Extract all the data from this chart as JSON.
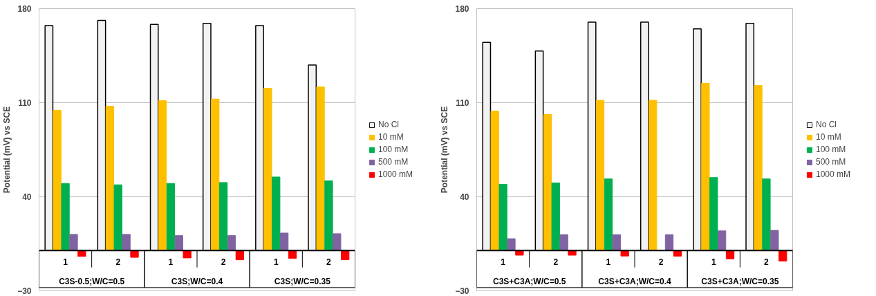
{
  "chart_data": [
    {
      "type": "bar",
      "ylabel": "Potential (mV) vs SCE",
      "categories": [
        "1",
        "2",
        "1",
        "2",
        "1",
        "2"
      ],
      "annotations": [
        "C3S-0.5;W/C=0.5",
        "C3S;W/C=0.4",
        "C3S;W/C=0.35"
      ],
      "ylim": [
        -30,
        180
      ],
      "yticks": [
        -30,
        40,
        110,
        180
      ],
      "grid": "y",
      "legend": "right",
      "series": [
        {
          "name": "No Cl",
          "color": "#f2f2f2",
          "values": [
            167.4,
            171.3,
            168.3,
            169,
            167.4,
            138
          ]
        },
        {
          "name": "10 mM",
          "color": "#ffc000",
          "values": [
            104.4,
            107.4,
            111.6,
            112.7,
            120.8,
            121.7
          ]
        },
        {
          "name": "100 mM",
          "color": "#00b050",
          "values": [
            49.9,
            48.9,
            49.9,
            50.6,
            54.7,
            51.9
          ]
        },
        {
          "name": "500 mM",
          "color": "#8064a2",
          "values": [
            12,
            12,
            11.1,
            11.1,
            13,
            12.5
          ]
        },
        {
          "name": "1000 mM",
          "color": "#ff0000",
          "values": [
            -4.4,
            -5.1,
            -5.5,
            -6.9,
            -5.8,
            -6.9
          ]
        }
      ]
    },
    {
      "type": "bar",
      "ylabel": "Potential (mV) vs SCE",
      "categories": [
        "1",
        "2",
        "1",
        "2",
        "1",
        "2"
      ],
      "annotations": [
        "C3S+C3A;W/C=0.5",
        "C3S+C3A;W/C=0.4",
        "C3S+C3A;W/C=0.35"
      ],
      "ylim": [
        -30,
        180
      ],
      "yticks": [
        -30,
        40,
        110,
        180
      ],
      "grid": "y",
      "legend": "right",
      "series": [
        {
          "name": "No Cl",
          "color": "#f2f2f2",
          "values": [
            154.9,
            148.5,
            170,
            170,
            165,
            169
          ]
        },
        {
          "name": "10 mM",
          "color": "#ffc000",
          "values": [
            103.7,
            101.2,
            111.8,
            111.8,
            124.5,
            122.8
          ]
        },
        {
          "name": "100 mM",
          "color": "#00b050",
          "values": [
            49.2,
            50.3,
            53.3,
            null,
            54.3,
            53.3
          ]
        },
        {
          "name": "500 mM",
          "color": "#8064a2",
          "values": [
            8.8,
            11.8,
            11.8,
            11.8,
            14.6,
            15
          ]
        },
        {
          "name": "1000 mM",
          "color": "#ff0000",
          "values": [
            -3.5,
            -3.5,
            -4.1,
            -4.2,
            -6.2,
            -7.9
          ]
        }
      ]
    }
  ]
}
